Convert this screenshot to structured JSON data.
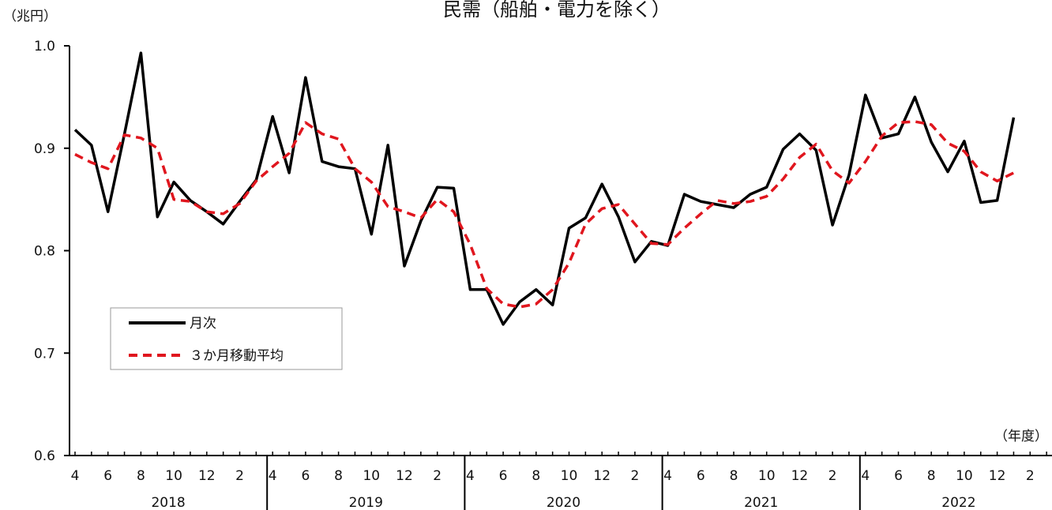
{
  "chart_data": {
    "type": "line",
    "title": "民需（船舶・電力を除く）",
    "y_unit": "（兆円）",
    "x_unit": "（年度）",
    "ylim": [
      0.6,
      1.0
    ],
    "y_ticks": [
      "0.6",
      "0.7",
      "0.8",
      "0.9",
      "1.0"
    ],
    "grid": false,
    "legend_position": "middle-left",
    "month_labels": [
      "4",
      "6",
      "8",
      "10",
      "12",
      "2",
      "4",
      "6",
      "8",
      "10",
      "12",
      "2",
      "4",
      "6",
      "8",
      "10",
      "12",
      "2",
      "4",
      "6",
      "8",
      "10",
      "12",
      "2",
      "4",
      "6",
      "8",
      "10",
      "12",
      "2"
    ],
    "years": [
      "2018",
      "2019",
      "2020",
      "2021",
      "2022"
    ],
    "series": [
      {
        "name": "月次",
        "color": "#000000",
        "style": "solid",
        "values": [
          0.918,
          0.903,
          0.838,
          0.914,
          0.993,
          0.833,
          0.867,
          0.849,
          0.838,
          0.826,
          0.848,
          0.869,
          0.931,
          0.876,
          0.969,
          0.887,
          0.882,
          0.88,
          0.816,
          0.903,
          0.785,
          0.829,
          0.862,
          0.861,
          0.762,
          0.762,
          0.728,
          0.75,
          0.762,
          0.747,
          0.822,
          0.832,
          0.865,
          0.833,
          0.789,
          0.809,
          0.805,
          0.855,
          0.848,
          0.845,
          0.842,
          0.855,
          0.862,
          0.899,
          0.914,
          0.898,
          0.825,
          0.874,
          0.952,
          0.91,
          0.914,
          0.95,
          0.906,
          0.877,
          0.907,
          0.847,
          0.849,
          0.93
        ]
      },
      {
        "name": "３か月移動平均",
        "color": "#e0161e",
        "style": "dashed",
        "values": [
          0.894,
          0.886,
          0.88,
          0.913,
          0.91,
          0.9,
          0.85,
          0.848,
          0.838,
          0.836,
          0.846,
          0.868,
          0.882,
          0.895,
          0.925,
          0.914,
          0.909,
          0.88,
          0.867,
          0.843,
          0.838,
          0.832,
          0.85,
          0.838,
          0.806,
          0.763,
          0.748,
          0.745,
          0.748,
          0.762,
          0.788,
          0.826,
          0.841,
          0.845,
          0.826,
          0.807,
          0.806,
          0.822,
          0.836,
          0.849,
          0.846,
          0.848,
          0.853,
          0.87,
          0.891,
          0.904,
          0.878,
          0.866,
          0.887,
          0.912,
          0.925,
          0.926,
          0.923,
          0.905,
          0.897,
          0.877,
          0.868,
          0.876
        ]
      }
    ]
  }
}
